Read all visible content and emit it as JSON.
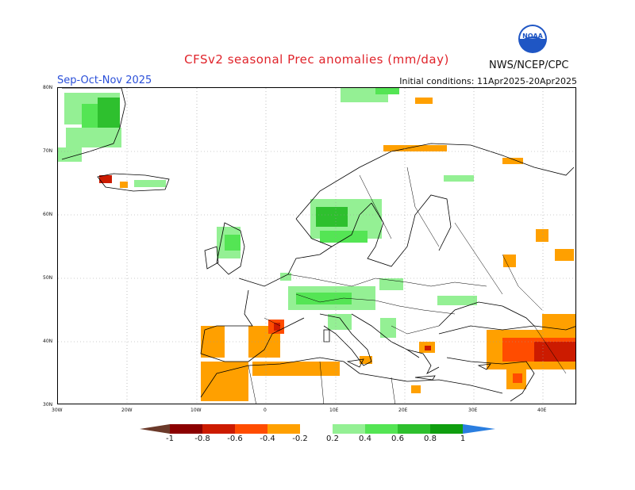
{
  "title": "CFSv2 seasonal Prec anomalies (mm/day)",
  "season": "Sep-Oct-Nov 2025",
  "initial_conditions": "Initial conditions: 11Apr2025-20Apr2025",
  "agency": "NWS/NCEP/CPC",
  "logo": {
    "text": "NOAA",
    "icon": "noaa-logo-icon"
  },
  "axes": {
    "lat_labels": [
      "80N",
      "70N",
      "60N",
      "50N",
      "40N",
      "30N"
    ],
    "lon_labels": [
      "30W",
      "20W",
      "10W",
      "0",
      "10E",
      "20E",
      "30E",
      "40E"
    ]
  },
  "colorbar": {
    "labels": [
      "-1",
      "-0.8",
      "-0.6",
      "-0.4",
      "-0.2",
      "0.2",
      "0.4",
      "0.6",
      "0.8",
      "1"
    ],
    "colors": {
      "below_min": "#6b3a2a",
      "c1": "#8b0000",
      "c2": "#cc1b00",
      "c3": "#ff4c00",
      "c4": "#ffa000",
      "neutral": "#ffffff",
      "c5": "#94f094",
      "c6": "#54e554",
      "c7": "#2ec02e",
      "c8": "#0f9e0f",
      "above_max": "#2a7ee0"
    }
  },
  "colors": {
    "title": "#e0232a",
    "season": "#2a4fd9",
    "wet_light": "#94f094",
    "wet_mid": "#54e554",
    "wet_dark": "#2ec02e",
    "dry_light": "#ffa000",
    "dry_mid": "#ff4c00",
    "dry_dark": "#cc1b00"
  }
}
